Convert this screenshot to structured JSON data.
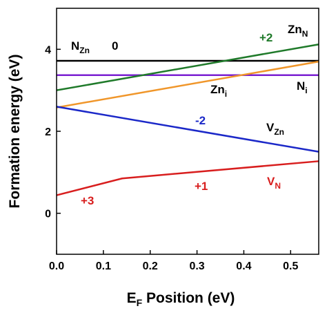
{
  "chart_data": {
    "type": "line",
    "x_label": {
      "main": "E",
      "sub": "F",
      "tail": " Position (eV)"
    },
    "y_label": "Formation energy (eV)",
    "xlim": [
      0,
      0.56
    ],
    "ylim": [
      -1,
      5
    ],
    "xticks": [
      {
        "value": 0,
        "label": "0.0"
      },
      0.1,
      0.2,
      0.3,
      0.4,
      0.5
    ],
    "yticks": [
      0,
      2,
      4
    ],
    "series": [
      {
        "color": "#000000",
        "x": [
          0,
          0.56
        ],
        "values": [
          3.72,
          3.72
        ]
      },
      {
        "color": "#7a1fd1",
        "x": [
          0,
          0.56
        ],
        "values": [
          3.37,
          3.37
        ]
      },
      {
        "color": "#1f7a2a",
        "x": [
          0,
          0.56
        ],
        "values": [
          3.0,
          4.12
        ]
      },
      {
        "color": "#f0962a",
        "x": [
          0,
          0.56
        ],
        "values": [
          2.58,
          3.7
        ]
      },
      {
        "color": "#1b28c8",
        "x": [
          0,
          0.56
        ],
        "values": [
          2.6,
          1.5
        ]
      },
      {
        "color": "#d81e1e",
        "x": [
          0,
          0.14,
          0.56
        ],
        "values": [
          0.44,
          0.85,
          1.27
        ]
      }
    ],
    "annotations": [
      {
        "text": "N",
        "sub": "Zn",
        "color": "#000000"
      },
      {
        "text": "0",
        "color": "#000000"
      },
      {
        "text": "+2",
        "color": "#1f7a2a"
      },
      {
        "text": "Zn",
        "sub": "N",
        "color": "#000000"
      },
      {
        "text": "Zn",
        "sub": "i",
        "color": "#000000"
      },
      {
        "text": "N",
        "sub": "i",
        "color": "#000000"
      },
      {
        "text": "-2",
        "color": "#1b28c8"
      },
      {
        "text": "V",
        "sub": "Zn",
        "color": "#000000"
      },
      {
        "text": "+1",
        "color": "#d81e1e"
      },
      {
        "text": "V",
        "sub": "N",
        "color": "#d81e1e"
      },
      {
        "text": "+3",
        "color": "#d81e1e"
      }
    ]
  }
}
